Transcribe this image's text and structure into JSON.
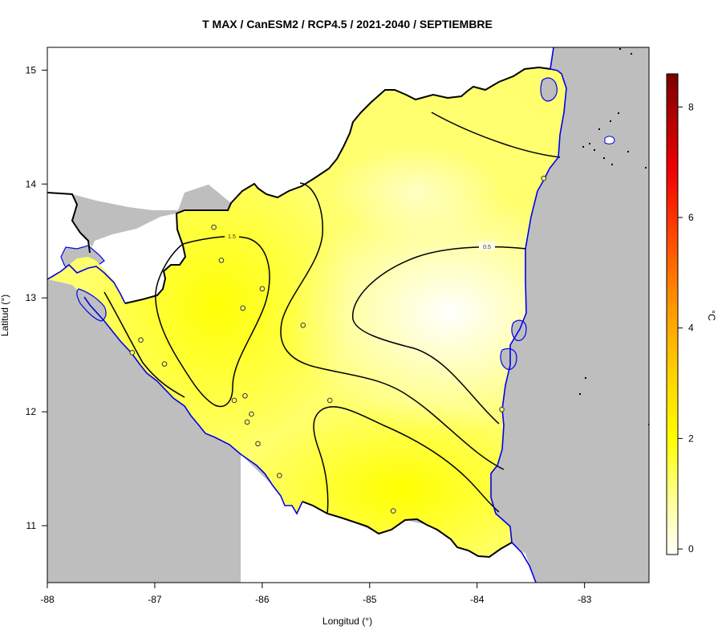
{
  "title": "T MAX / CanESM2 / RCP4.5 / 2021-2040 / SEPTIEMBRE",
  "x_axis": {
    "label": "Longitud (°)",
    "ticks": [
      -88,
      -87,
      -86,
      -85,
      -84,
      -83
    ],
    "tick_labels": [
      "-88",
      "-87",
      "-86",
      "-85",
      "-84",
      "-83"
    ],
    "range": [
      -88,
      -82.4
    ]
  },
  "y_axis": {
    "label": "Latitud (°)",
    "ticks": [
      11,
      12,
      13,
      14,
      15
    ],
    "tick_labels": [
      "11",
      "12",
      "13",
      "14",
      "15"
    ],
    "range": [
      10.5,
      15.2
    ]
  },
  "colorbar": {
    "unit_label": "°C",
    "ticks": [
      0,
      2,
      4,
      6,
      8
    ],
    "tick_labels": [
      "0",
      "2",
      "4",
      "6",
      "8"
    ],
    "range": [
      -0.1,
      8.6
    ],
    "colors": [
      "#ffffff",
      "#ffff80",
      "#ffff00",
      "#ffd000",
      "#ff8c00",
      "#ff2000",
      "#e00000",
      "#7a0000"
    ]
  },
  "contour_labels": {
    "c15": "1.5",
    "c05": "0.5"
  },
  "stations": [
    {
      "lon": -86.45,
      "lat": 13.62
    },
    {
      "lon": -86.38,
      "lat": 13.33
    },
    {
      "lon": -86.0,
      "lat": 13.08
    },
    {
      "lon": -86.18,
      "lat": 12.91
    },
    {
      "lon": -85.62,
      "lat": 12.76
    },
    {
      "lon": -87.13,
      "lat": 12.63
    },
    {
      "lon": -87.21,
      "lat": 12.52
    },
    {
      "lon": -86.91,
      "lat": 12.42
    },
    {
      "lon": -86.16,
      "lat": 12.14
    },
    {
      "lon": -86.26,
      "lat": 12.1
    },
    {
      "lon": -85.37,
      "lat": 12.1
    },
    {
      "lon": -86.1,
      "lat": 11.98
    },
    {
      "lon": -86.14,
      "lat": 11.91
    },
    {
      "lon": -86.04,
      "lat": 11.72
    },
    {
      "lon": -85.84,
      "lat": 11.44
    },
    {
      "lon": -84.78,
      "lat": 11.13
    },
    {
      "lon": -83.77,
      "lat": 12.02
    },
    {
      "lon": -83.38,
      "lat": 14.05
    }
  ],
  "colors": {
    "ocean": "#bebebe",
    "coast": "#0000ee",
    "border": "#000000",
    "contour": "#000000"
  }
}
